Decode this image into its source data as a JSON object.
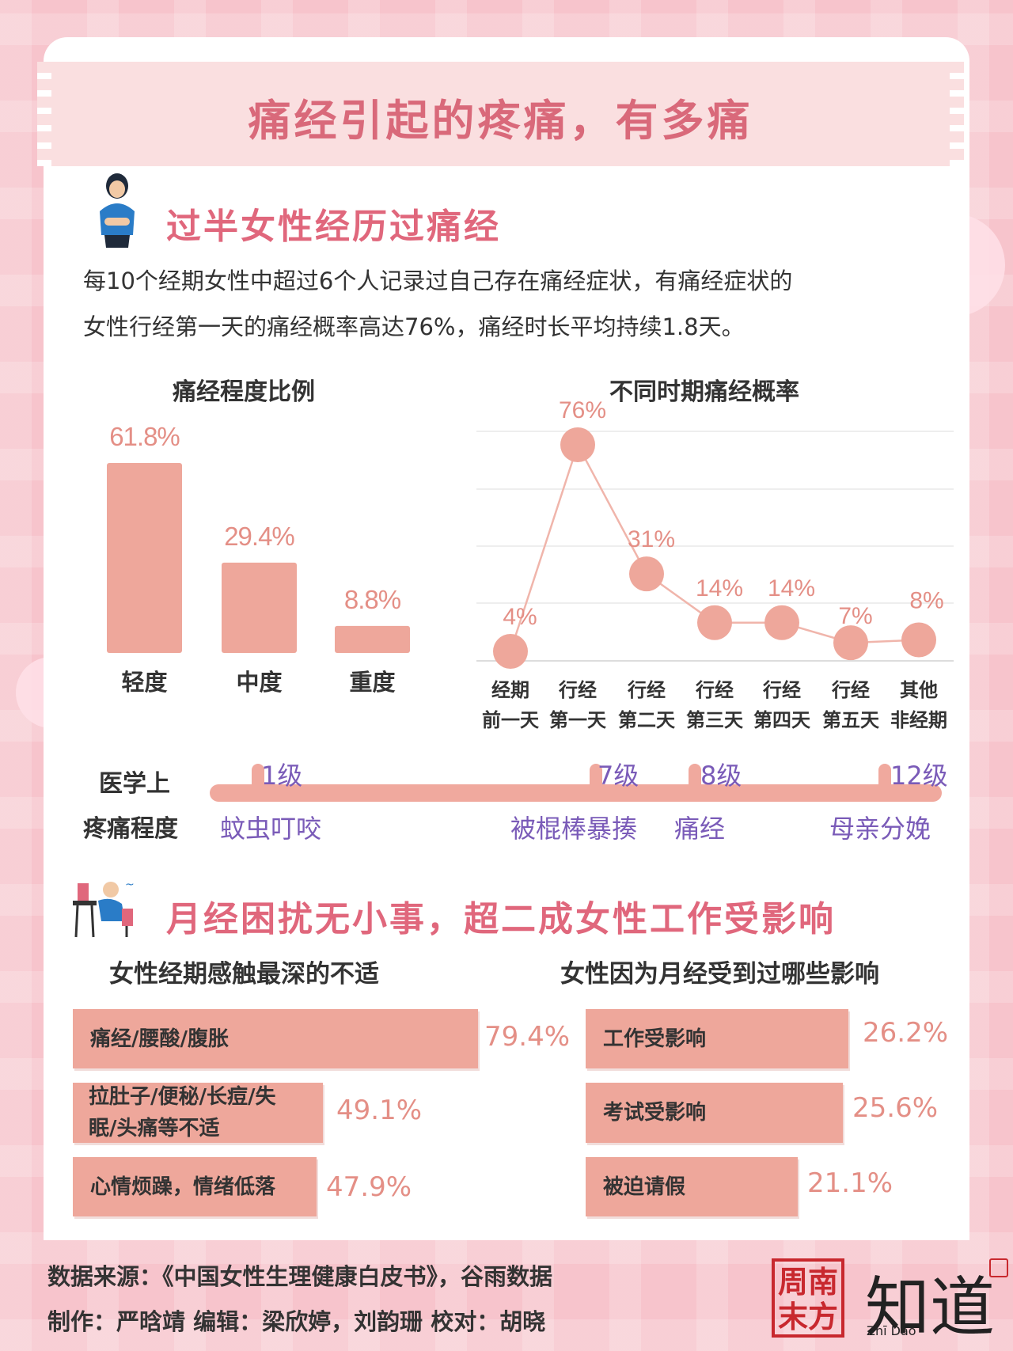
{
  "title": "痛经引起的疼痛，有多痛",
  "section1": {
    "title": "过半女性经历过痛经",
    "paragraph_line1": "每10个经期女性中超过6个人记录过自己存在痛经症状，有痛经症状的",
    "paragraph_line2": "女性行经第一天的痛经概率高达76%，痛经时长平均持续1.8天。"
  },
  "scale": {
    "label_line1": "医学上",
    "label_line2": "疼痛程度",
    "items": [
      {
        "level": "1级",
        "desc": "蚊虫叮咬"
      },
      {
        "level": "7级",
        "desc": "被棍棒暴揍"
      },
      {
        "level": "8级",
        "desc": "痛经"
      },
      {
        "level": "12级",
        "desc": "母亲分娩"
      }
    ]
  },
  "section2": {
    "title": "月经困扰无小事，超二成女性工作受影响",
    "left_title": "女性经期感触最深的不适",
    "right_title": "女性因为月经受到过哪些影响",
    "left_items": [
      {
        "label": "痛经/腰酸/腹胀",
        "value": "79.4%"
      },
      {
        "label_line1": "拉肚子/便秘/长痘/失",
        "label_line2": "眠/头痛等不适",
        "value": "49.1%"
      },
      {
        "label": "心情烦躁，情绪低落",
        "value": "47.9%"
      }
    ],
    "right_items": [
      {
        "label": "工作受影响",
        "value": "26.2%"
      },
      {
        "label": "考试受影响",
        "value": "25.6%"
      },
      {
        "label": "被迫请假",
        "value": "21.1%"
      }
    ]
  },
  "footer": {
    "line1": "数据来源：《中国女性生理健康白皮书》，谷雨数据",
    "line2": "制作：严晗靖  编辑：梁欣婷，刘韵珊  校对：胡晓",
    "seal_line1": "周南",
    "seal_line2": "末方",
    "logo_text": "知道",
    "logo_sub": "Zhī Dào"
  },
  "colors": {
    "bar": "#eea79b",
    "accent": "#e0677c",
    "scale_text": "#7a5bb8"
  },
  "chart_data": [
    {
      "type": "bar",
      "title": "痛经程度比例",
      "categories": [
        "轻度",
        "中度",
        "重度"
      ],
      "values": [
        61.8,
        29.4,
        8.8
      ],
      "labels": [
        "61.8%",
        "29.4%",
        "8.8%"
      ],
      "ylim": [
        0,
        61.8
      ]
    },
    {
      "type": "line",
      "title": "不同时期痛经概率",
      "categories": [
        [
          "经期",
          "前一天"
        ],
        [
          "行经",
          "第一天"
        ],
        [
          "行经",
          "第二天"
        ],
        [
          "行经",
          "第三天"
        ],
        [
          "行经",
          "第四天"
        ],
        [
          "行经",
          "第五天"
        ],
        [
          "其他",
          "非经期"
        ]
      ],
      "values": [
        4,
        76,
        31,
        14,
        14,
        7,
        8
      ],
      "labels": [
        "4%",
        "76%",
        "31%",
        "14%",
        "14%",
        "7%",
        "8%"
      ],
      "ylim": [
        0,
        80
      ],
      "grid": true
    },
    {
      "type": "bar",
      "title": "女性经期感触最深的不适",
      "orientation": "horizontal",
      "values": [
        79.4,
        49.1,
        47.9
      ]
    },
    {
      "type": "bar",
      "title": "女性因为月经受到过哪些影响",
      "orientation": "horizontal",
      "values": [
        26.2,
        25.6,
        21.1
      ]
    }
  ]
}
